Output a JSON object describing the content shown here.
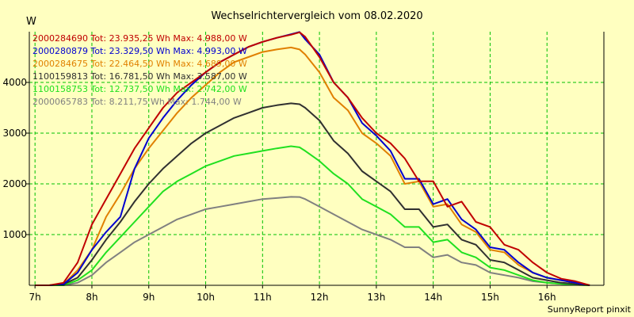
{
  "chart_data": {
    "type": "line",
    "title": "Wechselrichtervergleich vom 08.02.2020",
    "ylabel": "W",
    "xlabel": "",
    "footer": "SunnyReport pinxit",
    "xlim": [
      6.9,
      17.0
    ],
    "ylim": [
      0,
      5000
    ],
    "x_ticks": [
      7,
      8,
      9,
      10,
      11,
      12,
      13,
      14,
      15,
      16
    ],
    "x_tick_labels": [
      "7h",
      "8h",
      "9h",
      "10h",
      "11h",
      "12h",
      "13h",
      "14h",
      "15h",
      "16h"
    ],
    "y_ticks": [
      1000,
      2000,
      3000,
      4000
    ],
    "y_tick_labels": [
      "1000",
      "2000",
      "3000",
      "4000"
    ],
    "grid": true,
    "legend_position": "top-left",
    "background_color": "#ffffc0",
    "plot_color": "#ffffc0",
    "grid_color": "#00c000",
    "x": [
      7.0,
      7.25,
      7.5,
      7.75,
      8.0,
      8.25,
      8.5,
      8.75,
      9.0,
      9.25,
      9.5,
      9.75,
      10.0,
      10.25,
      10.5,
      10.75,
      11.0,
      11.25,
      11.5,
      11.65,
      11.75,
      12.0,
      12.25,
      12.5,
      12.75,
      13.0,
      13.25,
      13.5,
      13.75,
      14.0,
      14.25,
      14.5,
      14.75,
      15.0,
      15.25,
      15.5,
      15.75,
      16.0,
      16.25,
      16.5,
      16.75
    ],
    "series": [
      {
        "label": "2000284690 Tot: 23.935,25 Wh Max: 4.988,00 W",
        "color": "#c00000",
        "values": [
          0,
          0,
          50,
          450,
          1200,
          1700,
          2200,
          2700,
          3100,
          3500,
          3800,
          4000,
          4200,
          4400,
          4550,
          4700,
          4800,
          4880,
          4940,
          4988,
          4900,
          4500,
          4000,
          3700,
          3300,
          3000,
          2800,
          2500,
          2050,
          2050,
          1550,
          1650,
          1250,
          1150,
          800,
          700,
          450,
          250,
          130,
          80,
          0
        ]
      },
      {
        "label": "2000280879 Tot: 23.329,50 Wh Max: 4.993,00 W",
        "color": "#0000d0",
        "values": [
          0,
          0,
          20,
          250,
          700,
          1050,
          1350,
          2300,
          2900,
          3300,
          3650,
          3950,
          4200,
          4400,
          4550,
          4700,
          4800,
          4880,
          4950,
          4993,
          4850,
          4550,
          4000,
          3700,
          3200,
          2950,
          2650,
          2100,
          2100,
          1600,
          1700,
          1300,
          1100,
          750,
          700,
          450,
          250,
          150,
          100,
          50,
          0
        ]
      },
      {
        "label": "2000284675 Tot: 22.464,50 Wh Max: 4.689,00 W",
        "color": "#e08000",
        "values": [
          0,
          0,
          20,
          300,
          700,
          1350,
          1800,
          2300,
          2700,
          3050,
          3400,
          3700,
          3950,
          4200,
          4400,
          4500,
          4600,
          4650,
          4689,
          4650,
          4550,
          4200,
          3700,
          3450,
          3000,
          2800,
          2550,
          2000,
          2050,
          1550,
          1600,
          1200,
          1050,
          700,
          650,
          400,
          250,
          150,
          100,
          50,
          0
        ]
      },
      {
        "label": "1100159813 Tot: 16.781,50 Wh Max: 3.587,00 W",
        "color": "#303030",
        "values": [
          0,
          0,
          20,
          150,
          500,
          900,
          1250,
          1650,
          2000,
          2300,
          2550,
          2800,
          3000,
          3150,
          3300,
          3400,
          3500,
          3550,
          3587,
          3570,
          3500,
          3250,
          2850,
          2600,
          2250,
          2050,
          1850,
          1500,
          1500,
          1150,
          1200,
          900,
          800,
          500,
          450,
          300,
          150,
          100,
          50,
          30,
          0
        ]
      },
      {
        "label": "1100158753 Tot: 12.737,50 Wh Max: 2.742,00 W",
        "color": "#20e020",
        "values": [
          0,
          0,
          0,
          100,
          300,
          650,
          950,
          1250,
          1550,
          1850,
          2050,
          2200,
          2350,
          2450,
          2550,
          2600,
          2650,
          2700,
          2742,
          2720,
          2650,
          2450,
          2200,
          2000,
          1700,
          1550,
          1400,
          1150,
          1150,
          850,
          900,
          650,
          550,
          350,
          300,
          200,
          100,
          50,
          30,
          10,
          0
        ]
      },
      {
        "label": "2000065783 Tot: 8.211,75 Wh Max: 1.744,00 W",
        "color": "#808080",
        "values": [
          0,
          0,
          0,
          50,
          200,
          450,
          650,
          850,
          1000,
          1150,
          1300,
          1400,
          1500,
          1550,
          1600,
          1650,
          1700,
          1720,
          1744,
          1740,
          1700,
          1550,
          1400,
          1250,
          1100,
          1000,
          900,
          750,
          750,
          550,
          600,
          450,
          400,
          250,
          200,
          150,
          80,
          50,
          30,
          10,
          0
        ]
      }
    ]
  }
}
